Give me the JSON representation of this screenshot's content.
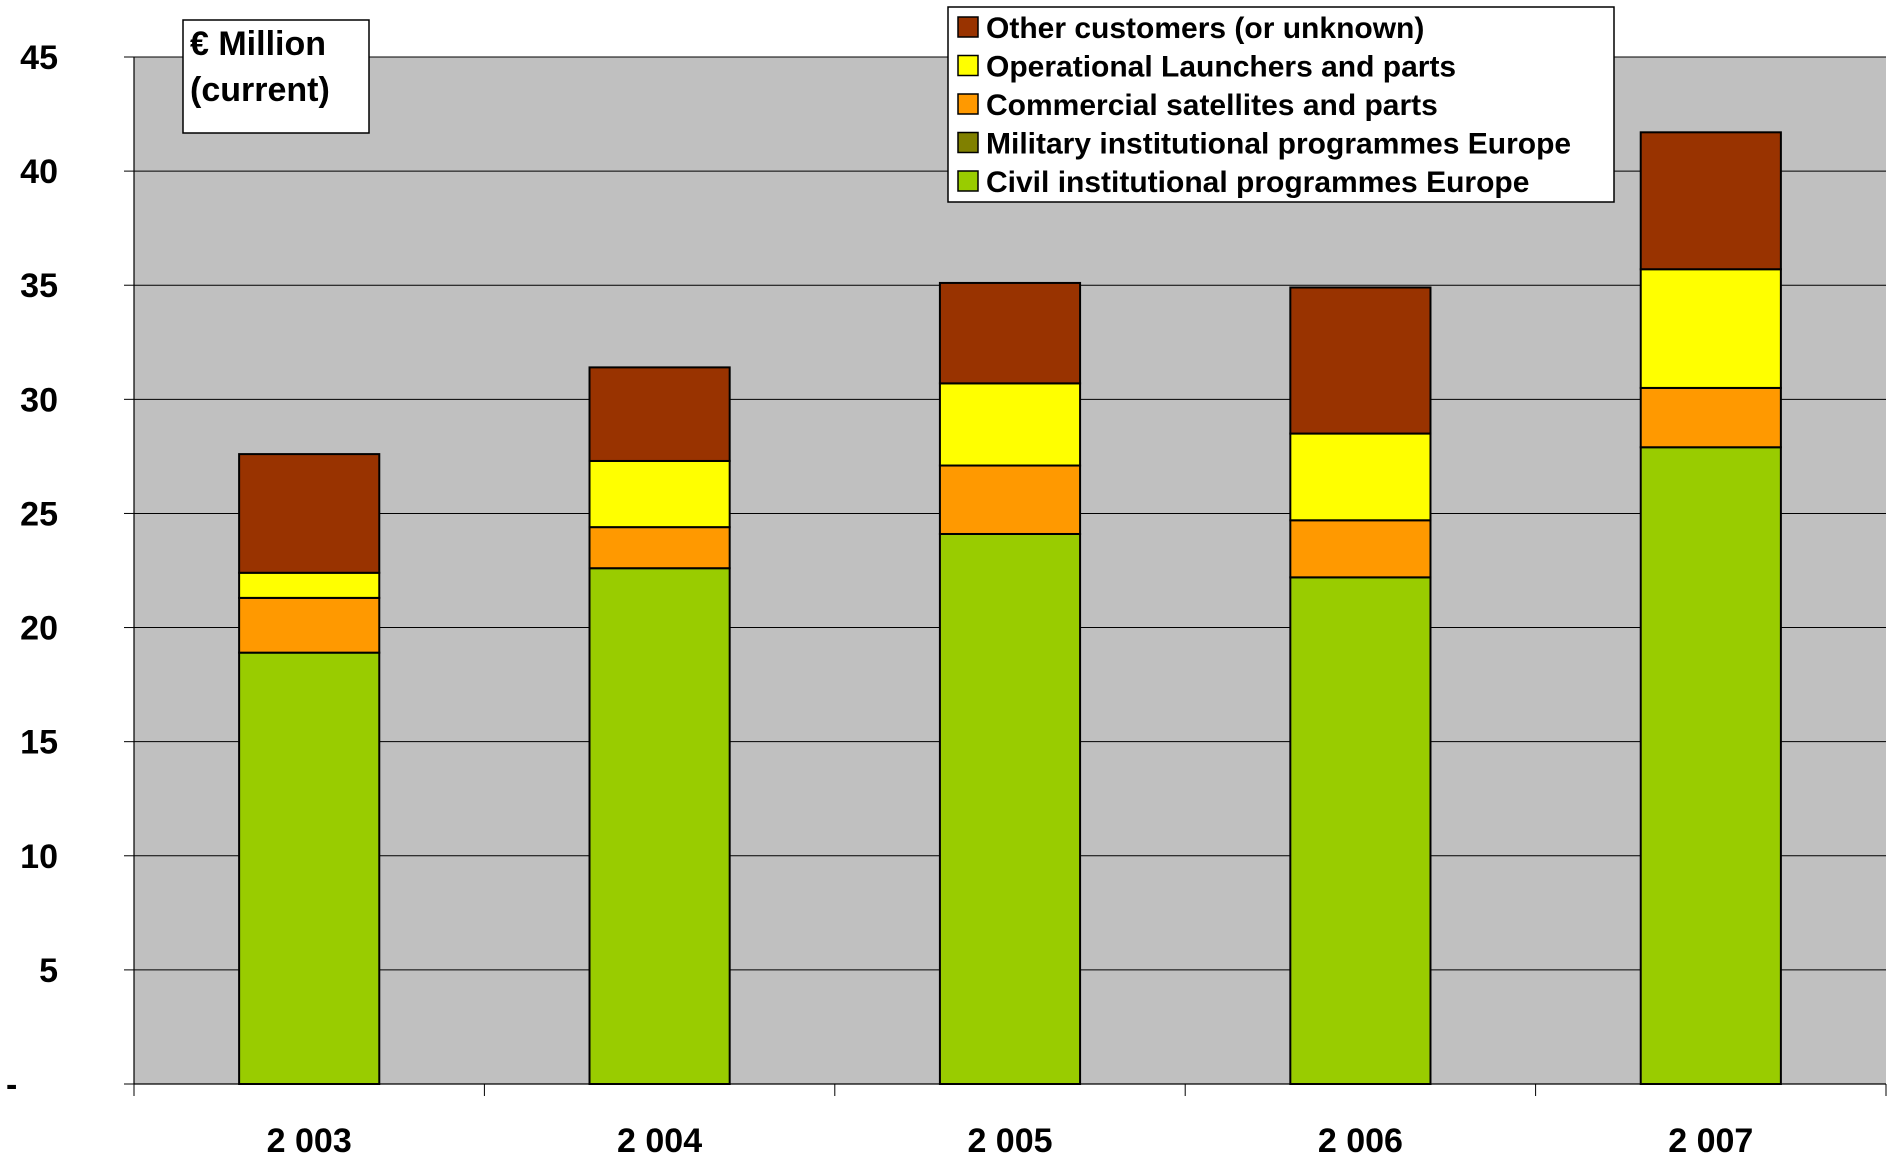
{
  "chart_data": {
    "type": "bar",
    "stacked": true,
    "unit_label": [
      "€ Million",
      "(current)"
    ],
    "categories": [
      "2 003",
      "2 004",
      "2 005",
      "2 006",
      "2 007"
    ],
    "y_tick_labels": [
      "-",
      "5",
      "10",
      "15",
      "20",
      "25",
      "30",
      "35",
      "40",
      "45"
    ],
    "ylim": [
      0,
      45
    ],
    "grid": true,
    "legend_position": "top-right",
    "series": [
      {
        "name": "Civil institutional programmes Europe",
        "color": "#99CC00",
        "values": [
          18.9,
          22.6,
          24.1,
          22.2,
          27.9
        ]
      },
      {
        "name": "Military institutional programmes Europe",
        "color": "#808000",
        "values": [
          0,
          0,
          0,
          0,
          0
        ]
      },
      {
        "name": "Commercial satellites and parts",
        "color": "#FF9900",
        "values": [
          2.4,
          1.8,
          3.0,
          2.5,
          2.6
        ]
      },
      {
        "name": "Operational Launchers and parts",
        "color": "#FFFF00",
        "values": [
          1.1,
          2.9,
          3.6,
          3.8,
          5.2
        ]
      },
      {
        "name": "Other customers (or unknown)",
        "color": "#993300",
        "values": [
          5.2,
          4.1,
          4.4,
          6.4,
          6.0
        ]
      }
    ],
    "plot_background": "#C0C0C0"
  }
}
